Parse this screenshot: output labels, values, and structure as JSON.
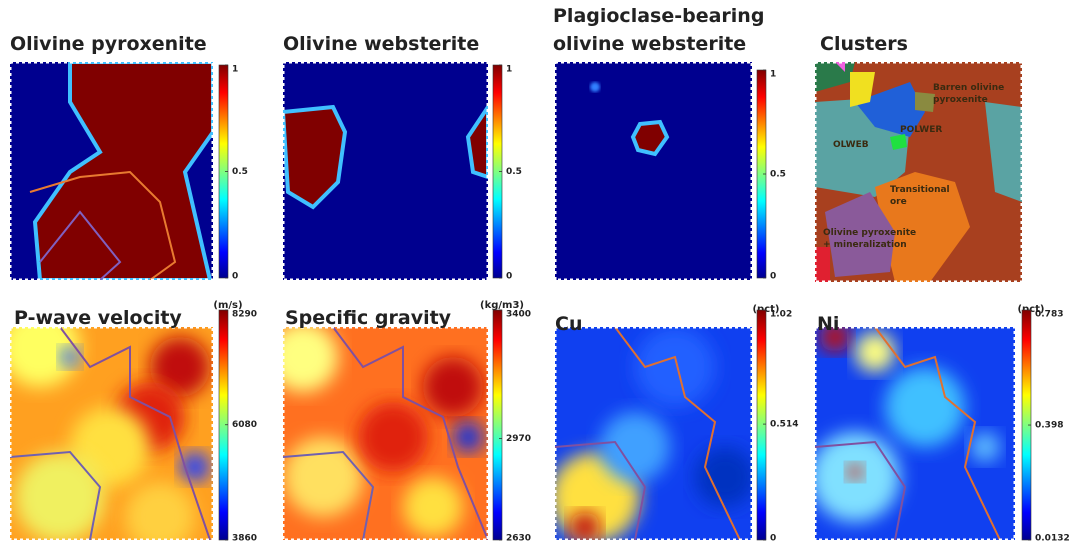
{
  "panels": [
    {
      "title": "Olivine pyroxenite",
      "colorbar": {
        "lim": [
          0,
          1
        ],
        "ticks": [
          0,
          0.5,
          1
        ]
      }
    },
    {
      "title": "Olivine websterite",
      "colorbar": {
        "lim": [
          0,
          1
        ],
        "ticks": [
          0,
          0.5,
          1
        ]
      }
    },
    {
      "title": [
        "Plagioclase-bearing",
        "olivine websterite"
      ],
      "colorbar": {
        "lim": [
          0,
          1
        ],
        "ticks": [
          0,
          0.5,
          1
        ]
      }
    },
    {
      "title": "Clusters",
      "labels": [
        "Barren olivine",
        "pyroxenite",
        "OLWEB",
        "POLWER",
        "Transitional",
        "ore",
        "Olivine pyroxenite",
        "+ mineralization"
      ]
    },
    {
      "title": "P-wave velocity",
      "unit": "(m/s)",
      "colorbar": {
        "lim": [
          3860,
          8290
        ],
        "ticks": [
          3860,
          6080,
          8290
        ]
      }
    },
    {
      "title": "Specific gravity",
      "unit": "(kg/m3)",
      "colorbar": {
        "lim": [
          2630,
          3400
        ],
        "ticks": [
          2630,
          2970,
          3400
        ]
      }
    },
    {
      "title": "Cu",
      "unit": "(pct)",
      "colorbar": {
        "lim": [
          0,
          1.02
        ],
        "ticks": [
          0,
          0.514,
          1.02
        ]
      }
    },
    {
      "title": "Ni",
      "unit": "(pct)",
      "colorbar": {
        "lim": [
          0.0132,
          0.783
        ],
        "ticks": [
          0.0132,
          0.398,
          0.783
        ]
      }
    }
  ]
}
